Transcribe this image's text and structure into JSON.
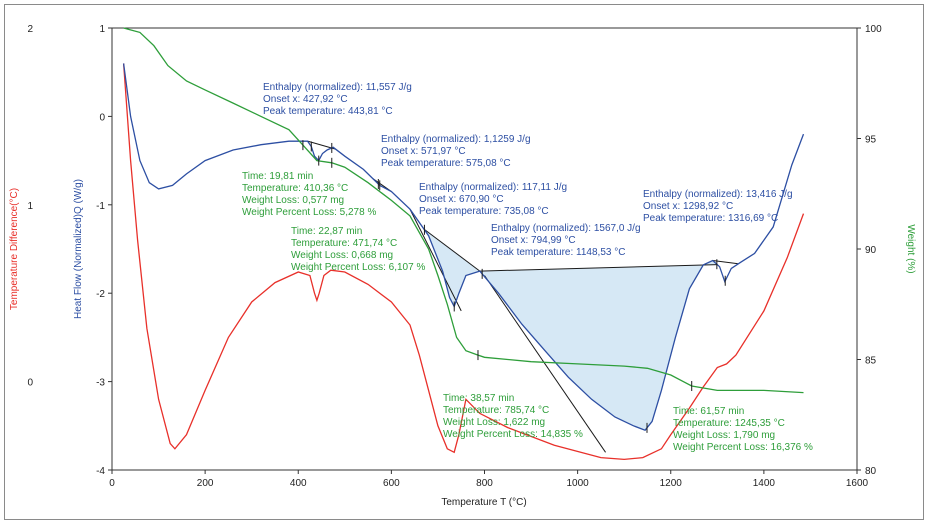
{
  "chart_data": {
    "type": "line",
    "title": "",
    "xlabel": "Temperature T (°C)",
    "xlim": [
      0,
      1600
    ],
    "xticks": [
      "0",
      "200",
      "400",
      "600",
      "800",
      "1000",
      "1200",
      "1400",
      "1600"
    ],
    "axes": {
      "temperature_difference": {
        "label": "Temperature Difference(°C)",
        "color": "#e8302a",
        "ylim": [
          -0.5,
          2
        ],
        "ticks": [
          "2",
          "1",
          "0"
        ]
      },
      "heat_flow": {
        "label": "Heat Flow (Normalized)Q (W/g)",
        "color": "#2d4fa3",
        "ylim": [
          -4,
          1
        ],
        "ticks": [
          "1",
          "0",
          "-1",
          "-2",
          "-3",
          "-4"
        ]
      },
      "weight": {
        "label": "Weight (%)",
        "color": "#2e9e3a",
        "ylim": [
          80,
          100
        ],
        "ticks": [
          "100",
          "95",
          "90",
          "85",
          "80"
        ]
      }
    },
    "series": [
      {
        "axis": "temperature_difference",
        "color": "#e8302a",
        "x": [
          25,
          40,
          55,
          75,
          100,
          125,
          135,
          160,
          200,
          250,
          300,
          350,
          400,
          425,
          435,
          440,
          445,
          455,
          470,
          500,
          550,
          600,
          640,
          660,
          680,
          700,
          720,
          735,
          745,
          760,
          790,
          850,
          950,
          1050,
          1100,
          1140,
          1180,
          1200,
          1240,
          1270,
          1300,
          1320,
          1340,
          1400,
          1450,
          1485
        ],
        "y": [
          1.8,
          1.25,
          0.8,
          0.3,
          -0.1,
          -0.35,
          -0.38,
          -0.3,
          -0.05,
          0.25,
          0.45,
          0.56,
          0.62,
          0.6,
          0.5,
          0.46,
          0.5,
          0.6,
          0.63,
          0.62,
          0.55,
          0.45,
          0.32,
          0.15,
          -0.05,
          -0.25,
          -0.38,
          -0.4,
          -0.3,
          -0.1,
          -0.18,
          -0.26,
          -0.36,
          -0.43,
          -0.44,
          -0.43,
          -0.38,
          -0.3,
          -0.15,
          -0.03,
          0.08,
          0.1,
          0.15,
          0.4,
          0.7,
          0.95
        ]
      },
      {
        "axis": "heat_flow",
        "color": "#2d4fa3",
        "x": [
          25,
          40,
          60,
          80,
          100,
          130,
          160,
          200,
          260,
          320,
          380,
          420,
          428,
          435,
          444,
          452,
          462,
          475,
          500,
          540,
          575,
          600,
          640,
          680,
          710,
          725,
          735,
          745,
          760,
          790,
          830,
          880,
          930,
          980,
          1030,
          1080,
          1120,
          1145,
          1160,
          1180,
          1210,
          1240,
          1270,
          1290,
          1305,
          1316,
          1330,
          1350,
          1380,
          1420,
          1460,
          1485
        ],
        "y": [
          0.6,
          0.0,
          -0.5,
          -0.75,
          -0.82,
          -0.78,
          -0.65,
          -0.5,
          -0.38,
          -0.32,
          -0.28,
          -0.28,
          -0.34,
          -0.45,
          -0.5,
          -0.42,
          -0.38,
          -0.35,
          -0.45,
          -0.6,
          -0.78,
          -0.85,
          -1.05,
          -1.35,
          -1.75,
          -2.05,
          -2.15,
          -2.0,
          -1.8,
          -1.75,
          -2.0,
          -2.35,
          -2.65,
          -2.95,
          -3.2,
          -3.4,
          -3.5,
          -3.55,
          -3.45,
          -3.1,
          -2.5,
          -1.95,
          -1.68,
          -1.63,
          -1.7,
          -1.87,
          -1.72,
          -1.65,
          -1.55,
          -1.25,
          -0.55,
          -0.2
        ]
      },
      {
        "axis": "weight",
        "color": "#2e9e3a",
        "x": [
          25,
          60,
          90,
          120,
          160,
          200,
          260,
          320,
          380,
          410,
          440,
          472,
          500,
          550,
          600,
          640,
          680,
          700,
          720,
          740,
          760,
          786,
          800,
          850,
          900,
          1000,
          1100,
          1150,
          1200,
          1245,
          1300,
          1400,
          1485
        ],
        "y": [
          100,
          99.8,
          99.2,
          98.3,
          97.6,
          97.2,
          96.6,
          96.0,
          95.4,
          94.7,
          94.0,
          93.9,
          93.7,
          93.0,
          92.2,
          91.5,
          90.0,
          88.8,
          87.5,
          86.0,
          85.4,
          85.2,
          85.1,
          85.0,
          84.9,
          84.8,
          84.7,
          84.6,
          84.3,
          83.8,
          83.6,
          83.6,
          83.5
        ]
      }
    ],
    "annotations": [
      {
        "color": "#2d4fa3",
        "lines": [
          "Enthalpy (normalized): 11,557 J/g",
          "Onset x: 427,92 °C",
          "Peak temperature: 443,81 °C"
        ]
      },
      {
        "color": "#2d4fa3",
        "lines": [
          "Enthalpy (normalized): 1,1259 J/g",
          "Onset x: 571,97 °C",
          "Peak temperature: 575,08 °C"
        ]
      },
      {
        "color": "#2d4fa3",
        "lines": [
          "Enthalpy (normalized): 117,11 J/g",
          "Onset x: 670,90 °C",
          "Peak temperature: 735,08 °C"
        ]
      },
      {
        "color": "#2d4fa3",
        "lines": [
          "Enthalpy (normalized): 1567,0 J/g",
          "Onset x: 794,99 °C",
          "Peak temperature: 1148,53 °C"
        ]
      },
      {
        "color": "#2d4fa3",
        "lines": [
          "Enthalpy (normalized): 13,416 J/g",
          "Onset x: 1298,92 °C",
          "Peak temperature: 1316,69 °C"
        ]
      },
      {
        "color": "#2e9e3a",
        "lines": [
          "Time: 19,81 min",
          "Temperature: 410,36 °C",
          "Weight Loss: 0,577 mg",
          "Weight Percent Loss: 5,278 %"
        ]
      },
      {
        "color": "#2e9e3a",
        "lines": [
          "Time: 22,87 min",
          "Temperature: 471,74 °C",
          "Weight Loss: 0,668 mg",
          "Weight Percent Loss: 6,107 %"
        ]
      },
      {
        "color": "#2e9e3a",
        "lines": [
          "Time: 38,57 min",
          "Temperature: 785,74 °C",
          "Weight Loss: 1,622 mg",
          "Weight Percent Loss: 14,835 %"
        ]
      },
      {
        "color": "#2e9e3a",
        "lines": [
          "Time: 61,57 min",
          "Temperature: 1245,35 °C",
          "Weight Loss: 1,790 mg",
          "Weight Percent Loss: 16,376 %"
        ]
      }
    ]
  }
}
